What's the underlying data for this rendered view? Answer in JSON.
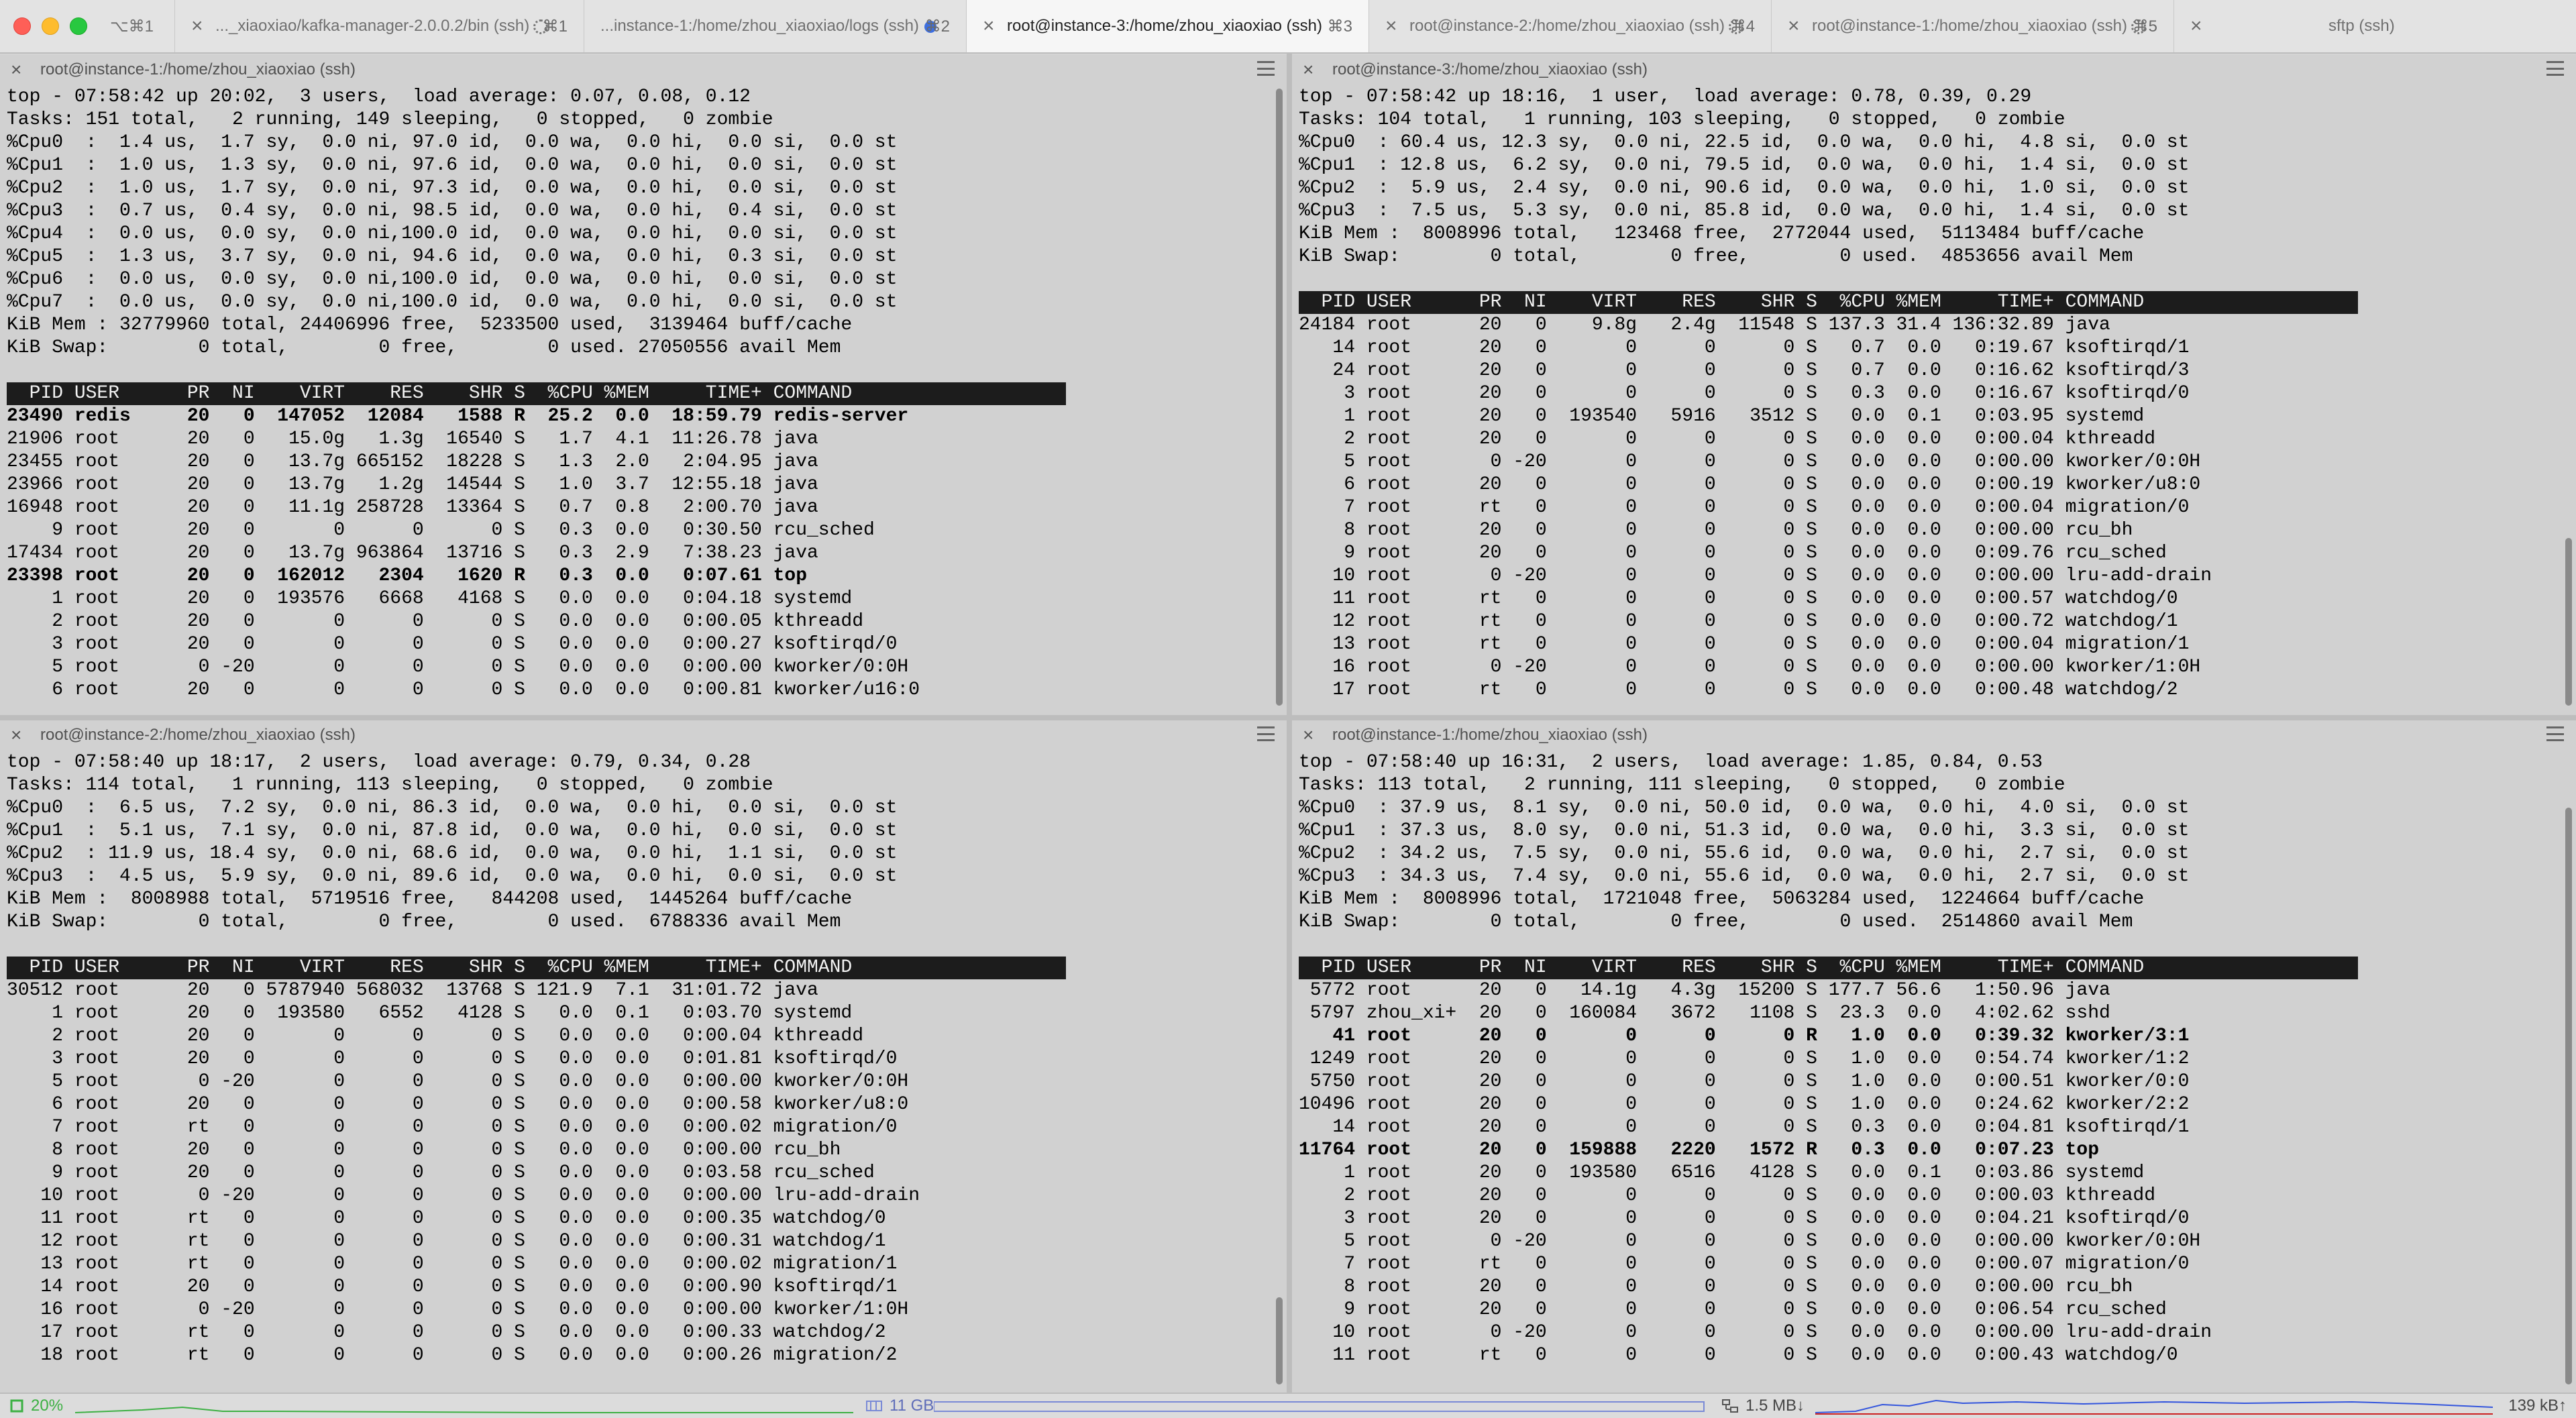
{
  "tabs": [
    {
      "label": "⌥⌘1",
      "key": ""
    },
    {
      "label": "..._xiaoxiao/kafka-manager-2.0.0.2/bin (ssh)",
      "key": "⌘1"
    },
    {
      "label": "...instance-1:/home/zhou_xiaoxiao/logs (ssh)",
      "key": "⌘2"
    },
    {
      "label": "root@instance-3:/home/zhou_xiaoxiao (ssh)",
      "key": "⌘3"
    },
    {
      "label": "root@instance-2:/home/zhou_xiaoxiao (ssh)",
      "key": "⌘4"
    },
    {
      "label": "root@instance-1:/home/zhou_xiaoxiao (ssh)",
      "key": "⌘5"
    },
    {
      "label": "sftp (ssh)",
      "key": ""
    }
  ],
  "panes": [
    {
      "title": "root@instance-1:/home/zhou_xiaoxiao (ssh)",
      "summary": [
        "top - 07:58:42 up 20:02,  3 users,  load average: 0.07, 0.08, 0.12",
        "Tasks: 151 total,   2 running, 149 sleeping,   0 stopped,   0 zombie",
        "%Cpu0  :  1.4 us,  1.7 sy,  0.0 ni, 97.0 id,  0.0 wa,  0.0 hi,  0.0 si,  0.0 st",
        "%Cpu1  :  1.0 us,  1.3 sy,  0.0 ni, 97.6 id,  0.0 wa,  0.0 hi,  0.0 si,  0.0 st",
        "%Cpu2  :  1.0 us,  1.7 sy,  0.0 ni, 97.3 id,  0.0 wa,  0.0 hi,  0.0 si,  0.0 st",
        "%Cpu3  :  0.7 us,  0.4 sy,  0.0 ni, 98.5 id,  0.0 wa,  0.0 hi,  0.4 si,  0.0 st",
        "%Cpu4  :  0.0 us,  0.0 sy,  0.0 ni,100.0 id,  0.0 wa,  0.0 hi,  0.0 si,  0.0 st",
        "%Cpu5  :  1.3 us,  3.7 sy,  0.0 ni, 94.6 id,  0.0 wa,  0.0 hi,  0.3 si,  0.0 st",
        "%Cpu6  :  0.0 us,  0.0 sy,  0.0 ni,100.0 id,  0.0 wa,  0.0 hi,  0.0 si,  0.0 st",
        "%Cpu7  :  0.0 us,  0.0 sy,  0.0 ni,100.0 id,  0.0 wa,  0.0 hi,  0.0 si,  0.0 st",
        "KiB Mem : 32779960 total, 24406996 free,  5233500 used,  3139464 buff/cache",
        "KiB Swap:        0 total,        0 free,        0 used. 27050556 avail Mem",
        ""
      ],
      "header": "  PID USER      PR  NI    VIRT    RES    SHR S  %CPU %MEM     TIME+ COMMAND                   ",
      "rows": [
        {
          "text": "23490 redis     20   0  147052  12084   1588 R  25.2  0.0  18:59.79 redis-server",
          "bold": true
        },
        {
          "text": "21906 root      20   0   15.0g   1.3g  16540 S   1.7  4.1  11:26.78 java",
          "bold": false
        },
        {
          "text": "23455 root      20   0   13.7g 665152  18228 S   1.3  2.0   2:04.95 java",
          "bold": false
        },
        {
          "text": "23966 root      20   0   13.7g   1.2g  14544 S   1.0  3.7  12:55.18 java",
          "bold": false
        },
        {
          "text": "16948 root      20   0   11.1g 258728  13364 S   0.7  0.8   2:00.70 java",
          "bold": false
        },
        {
          "text": "    9 root      20   0       0      0      0 S   0.3  0.0   0:30.50 rcu_sched",
          "bold": false
        },
        {
          "text": "17434 root      20   0   13.7g 963864  13716 S   0.3  2.9   7:38.23 java",
          "bold": false
        },
        {
          "text": "23398 root      20   0  162012   2304   1620 R   0.3  0.0   0:07.61 top",
          "bold": true
        },
        {
          "text": "    1 root      20   0  193576   6668   4168 S   0.0  0.0   0:04.18 systemd",
          "bold": false
        },
        {
          "text": "    2 root      20   0       0      0      0 S   0.0  0.0   0:00.05 kthreadd",
          "bold": false
        },
        {
          "text": "    3 root      20   0       0      0      0 S   0.0  0.0   0:00.27 ksoftirqd/0",
          "bold": false
        },
        {
          "text": "    5 root       0 -20       0      0      0 S   0.0  0.0   0:00.00 kworker/0:0H",
          "bold": false
        },
        {
          "text": "    6 root      20   0       0      0      0 S   0.0  0.0   0:00.81 kworker/u16:0",
          "bold": false
        }
      ]
    },
    {
      "title": "root@instance-3:/home/zhou_xiaoxiao (ssh)",
      "summary": [
        "top - 07:58:42 up 18:16,  1 user,  load average: 0.78, 0.39, 0.29",
        "Tasks: 104 total,   1 running, 103 sleeping,   0 stopped,   0 zombie",
        "%Cpu0  : 60.4 us, 12.3 sy,  0.0 ni, 22.5 id,  0.0 wa,  0.0 hi,  4.8 si,  0.0 st",
        "%Cpu1  : 12.8 us,  6.2 sy,  0.0 ni, 79.5 id,  0.0 wa,  0.0 hi,  1.4 si,  0.0 st",
        "%Cpu2  :  5.9 us,  2.4 sy,  0.0 ni, 90.6 id,  0.0 wa,  0.0 hi,  1.0 si,  0.0 st",
        "%Cpu3  :  7.5 us,  5.3 sy,  0.0 ni, 85.8 id,  0.0 wa,  0.0 hi,  1.4 si,  0.0 st",
        "KiB Mem :  8008996 total,   123468 free,  2772044 used,  5113484 buff/cache",
        "KiB Swap:        0 total,        0 free,        0 used.  4853656 avail Mem",
        ""
      ],
      "header": "  PID USER      PR  NI    VIRT    RES    SHR S  %CPU %MEM     TIME+ COMMAND                   ",
      "rows": [
        {
          "text": "24184 root      20   0    9.8g   2.4g  11548 S 137.3 31.4 136:32.89 java",
          "bold": false
        },
        {
          "text": "   14 root      20   0       0      0      0 S   0.7  0.0   0:19.67 ksoftirqd/1",
          "bold": false
        },
        {
          "text": "   24 root      20   0       0      0      0 S   0.7  0.0   0:16.62 ksoftirqd/3",
          "bold": false
        },
        {
          "text": "    3 root      20   0       0      0      0 S   0.3  0.0   0:16.67 ksoftirqd/0",
          "bold": false
        },
        {
          "text": "    1 root      20   0  193540   5916   3512 S   0.0  0.1   0:03.95 systemd",
          "bold": false
        },
        {
          "text": "    2 root      20   0       0      0      0 S   0.0  0.0   0:00.04 kthreadd",
          "bold": false
        },
        {
          "text": "    5 root       0 -20       0      0      0 S   0.0  0.0   0:00.00 kworker/0:0H",
          "bold": false
        },
        {
          "text": "    6 root      20   0       0      0      0 S   0.0  0.0   0:00.19 kworker/u8:0",
          "bold": false
        },
        {
          "text": "    7 root      rt   0       0      0      0 S   0.0  0.0   0:00.04 migration/0",
          "bold": false
        },
        {
          "text": "    8 root      20   0       0      0      0 S   0.0  0.0   0:00.00 rcu_bh",
          "bold": false
        },
        {
          "text": "    9 root      20   0       0      0      0 S   0.0  0.0   0:09.76 rcu_sched",
          "bold": false
        },
        {
          "text": "   10 root       0 -20       0      0      0 S   0.0  0.0   0:00.00 lru-add-drain",
          "bold": false
        },
        {
          "text": "   11 root      rt   0       0      0      0 S   0.0  0.0   0:00.57 watchdog/0",
          "bold": false
        },
        {
          "text": "   12 root      rt   0       0      0      0 S   0.0  0.0   0:00.72 watchdog/1",
          "bold": false
        },
        {
          "text": "   13 root      rt   0       0      0      0 S   0.0  0.0   0:00.04 migration/1",
          "bold": false
        },
        {
          "text": "   16 root       0 -20       0      0      0 S   0.0  0.0   0:00.00 kworker/1:0H",
          "bold": false
        },
        {
          "text": "   17 root      rt   0       0      0      0 S   0.0  0.0   0:00.48 watchdog/2",
          "bold": false
        }
      ]
    },
    {
      "title": "root@instance-2:/home/zhou_xiaoxiao (ssh)",
      "summary": [
        "top - 07:58:40 up 18:17,  2 users,  load average: 0.79, 0.34, 0.28",
        "Tasks: 114 total,   1 running, 113 sleeping,   0 stopped,   0 zombie",
        "%Cpu0  :  6.5 us,  7.2 sy,  0.0 ni, 86.3 id,  0.0 wa,  0.0 hi,  0.0 si,  0.0 st",
        "%Cpu1  :  5.1 us,  7.1 sy,  0.0 ni, 87.8 id,  0.0 wa,  0.0 hi,  0.0 si,  0.0 st",
        "%Cpu2  : 11.9 us, 18.4 sy,  0.0 ni, 68.6 id,  0.0 wa,  0.0 hi,  1.1 si,  0.0 st",
        "%Cpu3  :  4.5 us,  5.9 sy,  0.0 ni, 89.6 id,  0.0 wa,  0.0 hi,  0.0 si,  0.0 st",
        "KiB Mem :  8008988 total,  5719516 free,   844208 used,  1445264 buff/cache",
        "KiB Swap:        0 total,        0 free,        0 used.  6788336 avail Mem",
        ""
      ],
      "header": "  PID USER      PR  NI    VIRT    RES    SHR S  %CPU %MEM     TIME+ COMMAND                   ",
      "rows": [
        {
          "text": "30512 root      20   0 5787940 568032  13768 S 121.9  7.1  31:01.72 java",
          "bold": false
        },
        {
          "text": "    1 root      20   0  193580   6552   4128 S   0.0  0.1   0:03.70 systemd",
          "bold": false
        },
        {
          "text": "    2 root      20   0       0      0      0 S   0.0  0.0   0:00.04 kthreadd",
          "bold": false
        },
        {
          "text": "    3 root      20   0       0      0      0 S   0.0  0.0   0:01.81 ksoftirqd/0",
          "bold": false
        },
        {
          "text": "    5 root       0 -20       0      0      0 S   0.0  0.0   0:00.00 kworker/0:0H",
          "bold": false
        },
        {
          "text": "    6 root      20   0       0      0      0 S   0.0  0.0   0:00.58 kworker/u8:0",
          "bold": false
        },
        {
          "text": "    7 root      rt   0       0      0      0 S   0.0  0.0   0:00.02 migration/0",
          "bold": false
        },
        {
          "text": "    8 root      20   0       0      0      0 S   0.0  0.0   0:00.00 rcu_bh",
          "bold": false
        },
        {
          "text": "    9 root      20   0       0      0      0 S   0.0  0.0   0:03.58 rcu_sched",
          "bold": false
        },
        {
          "text": "   10 root       0 -20       0      0      0 S   0.0  0.0   0:00.00 lru-add-drain",
          "bold": false
        },
        {
          "text": "   11 root      rt   0       0      0      0 S   0.0  0.0   0:00.35 watchdog/0",
          "bold": false
        },
        {
          "text": "   12 root      rt   0       0      0      0 S   0.0  0.0   0:00.31 watchdog/1",
          "bold": false
        },
        {
          "text": "   13 root      rt   0       0      0      0 S   0.0  0.0   0:00.02 migration/1",
          "bold": false
        },
        {
          "text": "   14 root      20   0       0      0      0 S   0.0  0.0   0:00.90 ksoftirqd/1",
          "bold": false
        },
        {
          "text": "   16 root       0 -20       0      0      0 S   0.0  0.0   0:00.00 kworker/1:0H",
          "bold": false
        },
        {
          "text": "   17 root      rt   0       0      0      0 S   0.0  0.0   0:00.33 watchdog/2",
          "bold": false
        },
        {
          "text": "   18 root      rt   0       0      0      0 S   0.0  0.0   0:00.26 migration/2",
          "bold": false
        }
      ]
    },
    {
      "title": "root@instance-1:/home/zhou_xiaoxiao (ssh)",
      "summary": [
        "top - 07:58:40 up 16:31,  2 users,  load average: 1.85, 0.84, 0.53",
        "Tasks: 113 total,   2 running, 111 sleeping,   0 stopped,   0 zombie",
        "%Cpu0  : 37.9 us,  8.1 sy,  0.0 ni, 50.0 id,  0.0 wa,  0.0 hi,  4.0 si,  0.0 st",
        "%Cpu1  : 37.3 us,  8.0 sy,  0.0 ni, 51.3 id,  0.0 wa,  0.0 hi,  3.3 si,  0.0 st",
        "%Cpu2  : 34.2 us,  7.5 sy,  0.0 ni, 55.6 id,  0.0 wa,  0.0 hi,  2.7 si,  0.0 st",
        "%Cpu3  : 34.3 us,  7.4 sy,  0.0 ni, 55.6 id,  0.0 wa,  0.0 hi,  2.7 si,  0.0 st",
        "KiB Mem :  8008996 total,  1721048 free,  5063284 used,  1224664 buff/cache",
        "KiB Swap:        0 total,        0 free,        0 used.  2514860 avail Mem",
        ""
      ],
      "header": "  PID USER      PR  NI    VIRT    RES    SHR S  %CPU %MEM     TIME+ COMMAND                   ",
      "rows": [
        {
          "text": " 5772 root      20   0   14.1g   4.3g  15200 S 177.7 56.6   1:50.96 java",
          "bold": false
        },
        {
          "text": " 5797 zhou_xi+  20   0  160084   3672   1108 S  23.3  0.0   4:02.62 sshd",
          "bold": false
        },
        {
          "text": "   41 root      20   0       0      0      0 R   1.0  0.0   0:39.32 kworker/3:1",
          "bold": true
        },
        {
          "text": " 1249 root      20   0       0      0      0 S   1.0  0.0   0:54.74 kworker/1:2",
          "bold": false
        },
        {
          "text": " 5750 root      20   0       0      0      0 S   1.0  0.0   0:00.51 kworker/0:0",
          "bold": false
        },
        {
          "text": "10496 root      20   0       0      0      0 S   1.0  0.0   0:24.62 kworker/2:2",
          "bold": false
        },
        {
          "text": "   14 root      20   0       0      0      0 S   0.3  0.0   0:04.81 ksoftirqd/1",
          "bold": false
        },
        {
          "text": "11764 root      20   0  159888   2220   1572 R   0.3  0.0   0:07.23 top",
          "bold": true
        },
        {
          "text": "    1 root      20   0  193580   6516   4128 S   0.0  0.1   0:03.86 systemd",
          "bold": false
        },
        {
          "text": "    2 root      20   0       0      0      0 S   0.0  0.0   0:00.03 kthreadd",
          "bold": false
        },
        {
          "text": "    3 root      20   0       0      0      0 S   0.0  0.0   0:04.21 ksoftirqd/0",
          "bold": false
        },
        {
          "text": "    5 root       0 -20       0      0      0 S   0.0  0.0   0:00.00 kworker/0:0H",
          "bold": false
        },
        {
          "text": "    7 root      rt   0       0      0      0 S   0.0  0.0   0:00.07 migration/0",
          "bold": false
        },
        {
          "text": "    8 root      20   0       0      0      0 S   0.0  0.0   0:00.00 rcu_bh",
          "bold": false
        },
        {
          "text": "    9 root      20   0       0      0      0 S   0.0  0.0   0:06.54 rcu_sched",
          "bold": false
        },
        {
          "text": "   10 root       0 -20       0      0      0 S   0.0  0.0   0:00.00 lru-add-drain",
          "bold": false
        },
        {
          "text": "   11 root      rt   0       0      0      0 S   0.0  0.0   0:00.43 watchdog/0",
          "bold": false
        }
      ]
    }
  ],
  "status": {
    "cpu": "20%",
    "memory": "11 GB",
    "net_down": "1.5 MB↓",
    "net_up": "139 kB↑",
    "cpu_color": "#3cb043",
    "mem_color": "#7a8ad6",
    "down_color": "#3355dd",
    "up_color": "#cc2222"
  },
  "icons": {
    "close": "×",
    "cpu": "cpu-icon",
    "memory": "memory-icon",
    "network": "network-icon"
  }
}
